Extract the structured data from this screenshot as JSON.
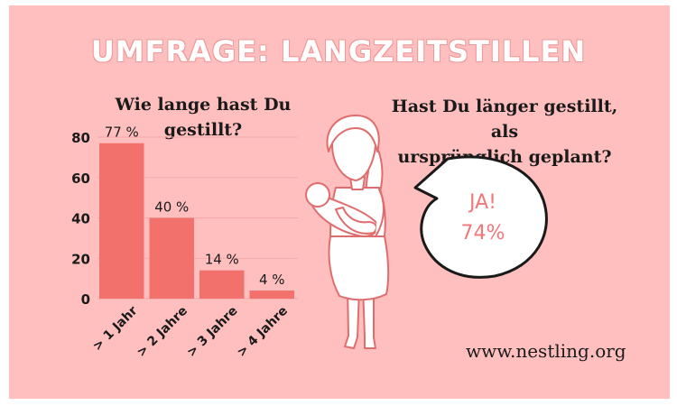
{
  "title": "UMFRAGE: LANGZEITSTILLEN",
  "left_question": "Wie lange hast Du gestillt?",
  "right_question_line1": "Hast Du länger gestillt, als",
  "right_question_line2": "ursprünglich geplant?",
  "bubble": {
    "line1": "JA!",
    "line2": "74%"
  },
  "website": "www.nestling.org",
  "colors": {
    "background": "#ffbfbf",
    "bar": "#f3716c",
    "title_outline": "#ee9a9a",
    "bubble_text": "#f0787a"
  },
  "chart_data": {
    "type": "bar",
    "title": "Wie lange hast Du gestillt?",
    "categories": [
      "> 1 Jahr",
      "> 2 Jahre",
      "> 3 Jahre",
      "> 4 Jahre"
    ],
    "values": [
      77,
      40,
      14,
      4
    ],
    "value_labels": [
      "77 %",
      "40 %",
      "14 %",
      "4 %"
    ],
    "yticks": [
      0,
      20,
      40,
      60,
      80
    ],
    "ylim": [
      0,
      80
    ],
    "grid": true,
    "legend": "none"
  }
}
